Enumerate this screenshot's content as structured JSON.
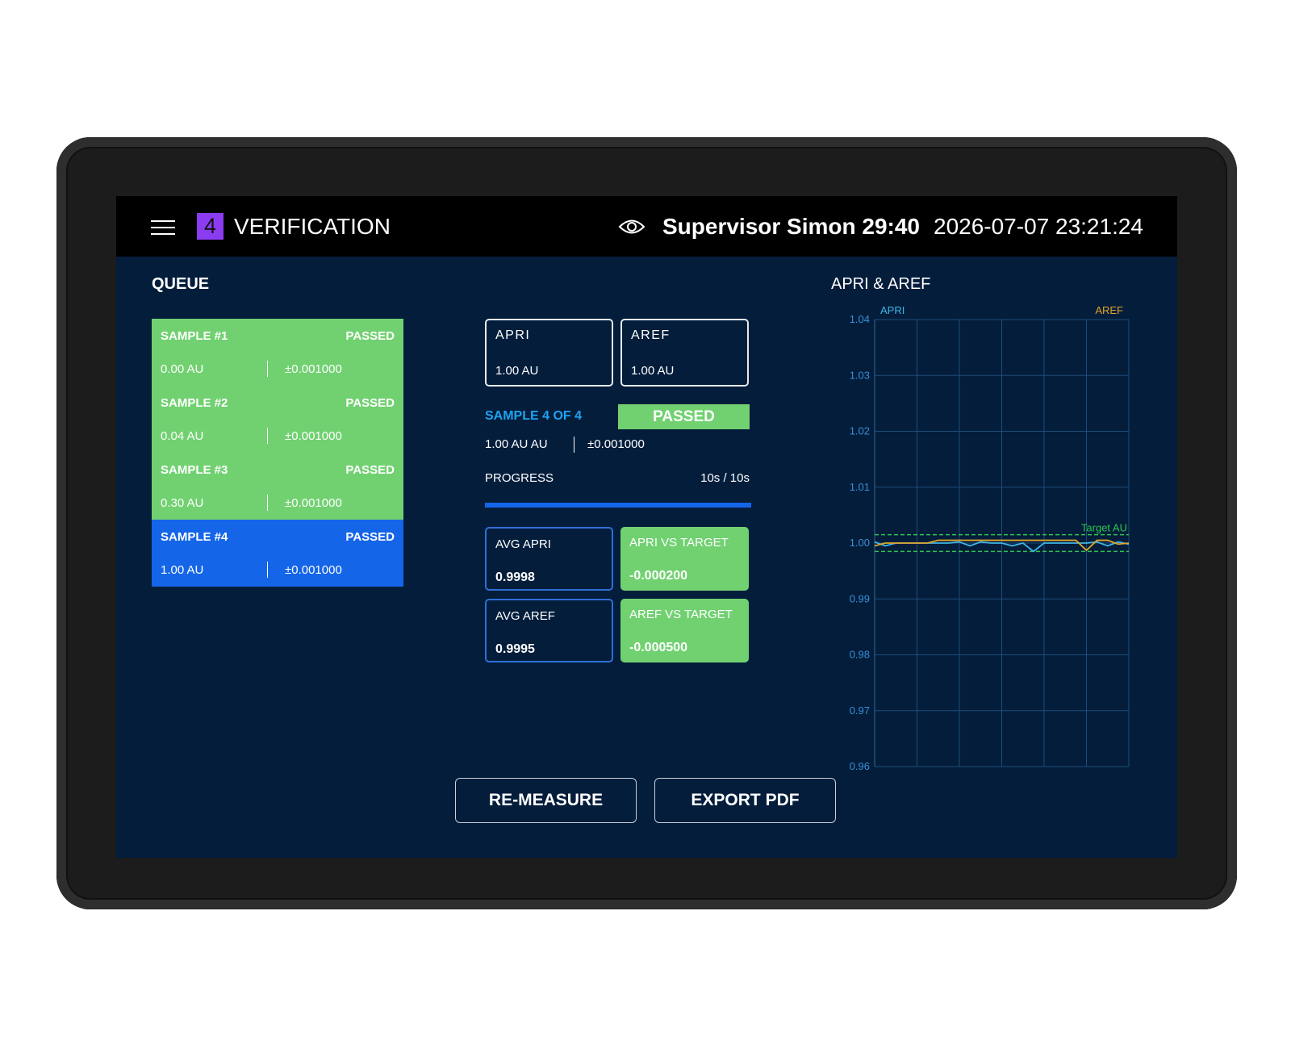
{
  "header": {
    "step": "4",
    "title": "VERIFICATION",
    "user": "Supervisor Simon 29:40",
    "datetime": "2026-07-07 23:21:24"
  },
  "queue": {
    "title": "QUEUE",
    "items": [
      {
        "name": "SAMPLE #1",
        "status": "PASSED",
        "value": "0.00 AU",
        "tolerance": "±0.001000",
        "color": "#71d171"
      },
      {
        "name": "SAMPLE #2",
        "status": "PASSED",
        "value": "0.04 AU",
        "tolerance": "±0.001000",
        "color": "#71d171"
      },
      {
        "name": "SAMPLE #3",
        "status": "PASSED",
        "value": "0.30 AU",
        "tolerance": "±0.001000",
        "color": "#71d171"
      },
      {
        "name": "SAMPLE #4",
        "status": "PASSED",
        "value": "1.00 AU",
        "tolerance": "±0.001000",
        "color": "#1565e8"
      }
    ]
  },
  "readings": [
    {
      "label": "APRI",
      "value": "1.00 AU"
    },
    {
      "label": "AREF",
      "value": "1.00 AU"
    }
  ],
  "current": {
    "sample": "SAMPLE 4 OF 4",
    "status": "PASSED",
    "value": "1.00 AU AU",
    "tolerance": "±0.001000"
  },
  "progress": {
    "label": "PROGRESS",
    "text": "10s / 10s"
  },
  "stats": [
    {
      "label": "AVG APRI",
      "value": "0.9998"
    },
    {
      "label": "APRI VS TARGET",
      "value": "-0.000200",
      "color": "#71d171"
    },
    {
      "label": "AVG AREF",
      "value": "0.9995"
    },
    {
      "label": "AREF VS TARGET",
      "value": "-0.000500",
      "color": "#71d171"
    }
  ],
  "buttons": [
    "RE-MEASURE",
    "EXPORT PDF"
  ],
  "chart_data": {
    "type": "line",
    "title": "APRI & AREF",
    "ylim": [
      0.96,
      1.04
    ],
    "yticks": [
      0.96,
      0.97,
      0.98,
      0.99,
      {
        "value": 1.0,
        "label": "1.00"
      },
      1.01,
      1.02,
      1.03,
      1.04
    ],
    "grid": true,
    "series": [
      {
        "name": "APRI",
        "color": "#3fb6e6",
        "values": [
          1.0002,
          0.9995,
          1.0,
          1.0,
          1.0,
          1.0,
          1.0,
          1.0,
          1.0002,
          0.9995,
          1.0002,
          1.0,
          1.0,
          0.9995,
          1.0,
          0.9985,
          1.0,
          1.0,
          1.0,
          1.0,
          1.0,
          1.0002,
          0.9995,
          1.0002,
          0.9998
        ]
      },
      {
        "name": "AREF",
        "color": "#e0a52a",
        "values": [
          0.9995,
          1.0,
          1.0,
          1.0,
          1.0,
          1.0,
          1.0005,
          1.0005,
          1.0005,
          1.0005,
          1.0005,
          1.0005,
          1.0005,
          1.0005,
          1.0005,
          1.0005,
          1.0005,
          1.0005,
          1.0005,
          1.0005,
          0.9987,
          1.0005,
          1.0005,
          0.9998,
          1.0
        ]
      }
    ],
    "target": {
      "label": "Target AU",
      "values": [
        0.9985,
        1.0015
      ],
      "color": "#2fc44f"
    }
  }
}
